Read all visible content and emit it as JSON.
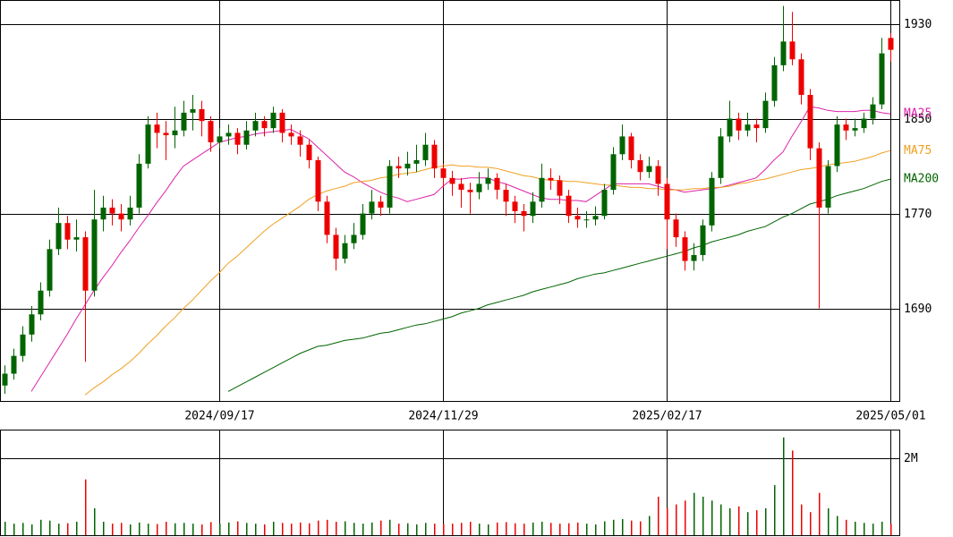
{
  "chart_data": {
    "type": "candlestick",
    "categories": [
      null,
      null,
      null,
      null,
      null,
      null,
      null,
      null,
      null,
      null,
      null,
      null,
      null,
      null,
      null,
      null,
      null,
      null,
      null,
      null,
      null,
      null,
      null,
      null,
      "2024/09/17",
      null,
      null,
      null,
      null,
      null,
      null,
      null,
      null,
      null,
      null,
      null,
      null,
      null,
      null,
      null,
      null,
      null,
      null,
      null,
      null,
      null,
      null,
      null,
      null,
      "2024/11/29",
      null,
      null,
      null,
      null,
      null,
      null,
      null,
      null,
      null,
      null,
      null,
      null,
      null,
      null,
      null,
      null,
      null,
      null,
      null,
      null,
      null,
      null,
      null,
      null,
      "2025/02/17",
      null,
      null,
      null,
      null,
      null,
      null,
      null,
      null,
      null,
      null,
      null,
      null,
      null,
      null,
      null,
      null,
      null,
      null,
      null,
      null,
      null,
      null,
      null,
      null,
      "2025/05/01"
    ],
    "open": [
      1625,
      1635,
      1650,
      1668,
      1685,
      1705,
      1740,
      1762,
      1748,
      1750,
      1705,
      1765,
      1775,
      1770,
      1765,
      1775,
      1812,
      1845,
      1838,
      1836,
      1840,
      1855,
      1858,
      1848,
      1830,
      1835,
      1838,
      1828,
      1840,
      1848,
      1842,
      1855,
      1838,
      1835,
      1828,
      1815,
      1780,
      1752,
      1732,
      1745,
      1752,
      1770,
      1780,
      1775,
      1810,
      1808,
      1812,
      1815,
      1828,
      1808,
      1800,
      1795,
      1790,
      1788,
      1795,
      1800,
      1790,
      1780,
      1772,
      1768,
      1780,
      1800,
      1798,
      1785,
      1768,
      1765,
      1765,
      1768,
      1790,
      1820,
      1835,
      1815,
      1805,
      1810,
      1795,
      1765,
      1750,
      1730,
      1735,
      1760,
      1800,
      1835,
      1850,
      1840,
      1845,
      1842,
      1865,
      1895,
      1915,
      1900,
      1870,
      1825,
      1775,
      1810,
      1845,
      1840,
      1842,
      1850,
      1862,
      1918
    ],
    "high": [
      1642,
      1656,
      1675,
      1692,
      1712,
      1748,
      1775,
      1768,
      1765,
      1755,
      1790,
      1785,
      1782,
      1778,
      1785,
      1820,
      1852,
      1855,
      1848,
      1860,
      1865,
      1870,
      1865,
      1852,
      1842,
      1845,
      1842,
      1848,
      1855,
      1852,
      1860,
      1858,
      1845,
      1840,
      1832,
      1818,
      1785,
      1758,
      1752,
      1762,
      1778,
      1790,
      1785,
      1815,
      1818,
      1822,
      1828,
      1838,
      1832,
      1812,
      1806,
      1800,
      1796,
      1805,
      1808,
      1804,
      1795,
      1785,
      1778,
      1788,
      1812,
      1808,
      1802,
      1790,
      1775,
      1772,
      1776,
      1795,
      1826,
      1845,
      1838,
      1820,
      1818,
      1815,
      1800,
      1770,
      1755,
      1745,
      1765,
      1805,
      1842,
      1865,
      1855,
      1855,
      1850,
      1872,
      1902,
      1945,
      1940,
      1905,
      1875,
      1830,
      1815,
      1852,
      1850,
      1850,
      1855,
      1868,
      1918,
      1922
    ],
    "low": [
      1618,
      1630,
      1645,
      1662,
      1680,
      1700,
      1735,
      1740,
      1738,
      1645,
      1700,
      1755,
      1760,
      1755,
      1760,
      1770,
      1808,
      1825,
      1815,
      1825,
      1835,
      1840,
      1835,
      1822,
      1825,
      1828,
      1820,
      1824,
      1835,
      1835,
      1838,
      1830,
      1828,
      1818,
      1808,
      1772,
      1745,
      1722,
      1728,
      1740,
      1748,
      1765,
      1768,
      1770,
      1800,
      1802,
      1805,
      1810,
      1800,
      1792,
      1785,
      1775,
      1770,
      1782,
      1790,
      1782,
      1768,
      1762,
      1755,
      1762,
      1775,
      1790,
      1778,
      1762,
      1758,
      1758,
      1760,
      1765,
      1786,
      1815,
      1808,
      1798,
      1800,
      1785,
      1740,
      1742,
      1722,
      1722,
      1730,
      1755,
      1795,
      1830,
      1832,
      1835,
      1830,
      1838,
      1860,
      1890,
      1895,
      1862,
      1815,
      1690,
      1770,
      1805,
      1832,
      1835,
      1838,
      1845,
      1858,
      1898
    ],
    "close": [
      1635,
      1650,
      1668,
      1685,
      1705,
      1740,
      1762,
      1748,
      1750,
      1705,
      1765,
      1775,
      1770,
      1765,
      1775,
      1812,
      1845,
      1838,
      1836,
      1840,
      1855,
      1858,
      1848,
      1830,
      1835,
      1838,
      1828,
      1840,
      1848,
      1842,
      1855,
      1838,
      1835,
      1828,
      1815,
      1780,
      1752,
      1732,
      1745,
      1752,
      1770,
      1780,
      1775,
      1810,
      1808,
      1812,
      1815,
      1828,
      1808,
      1800,
      1795,
      1790,
      1788,
      1795,
      1800,
      1790,
      1780,
      1772,
      1768,
      1780,
      1800,
      1798,
      1785,
      1768,
      1765,
      1765,
      1768,
      1790,
      1820,
      1835,
      1815,
      1805,
      1810,
      1795,
      1765,
      1750,
      1730,
      1735,
      1760,
      1800,
      1835,
      1850,
      1840,
      1845,
      1842,
      1865,
      1895,
      1915,
      1900,
      1870,
      1825,
      1775,
      1810,
      1845,
      1840,
      1842,
      1850,
      1862,
      1905,
      1908
    ],
    "up_color": "#006400",
    "down_color": "#ee0000",
    "ylim": [
      1612,
      1950
    ],
    "yticks": [
      1690,
      1770,
      1850,
      1930
    ],
    "grid": true,
    "moving_averages": [
      {
        "name": "MA25",
        "color": "#dd22aa",
        "values": [
          null,
          null,
          null,
          1620,
          1632,
          1644,
          1656,
          1668,
          1681,
          1693,
          1705,
          1716,
          1726,
          1737,
          1747,
          1758,
          1768,
          1779,
          1789,
          1800,
          1810,
          1815,
          1820,
          1825,
          1830,
          1832,
          1834,
          1835,
          1837,
          1838,
          1839,
          1840,
          1841,
          1837,
          1833,
          1826,
          1819,
          1812,
          1805,
          1801,
          1796,
          1792,
          1788,
          1785,
          1783,
          1780,
          1782,
          1784,
          1786,
          1793,
          1799,
          1799,
          1800,
          1800,
          1800,
          1797,
          1795,
          1792,
          1789,
          1786,
          1783,
          1782,
          1782,
          1781,
          1781,
          1780,
          1785,
          1790,
          1795,
          1795,
          1795,
          1795,
          1795,
          1793,
          1791,
          1790,
          1788,
          1789,
          1790,
          1791,
          1792,
          1794,
          1796,
          1798,
          1800,
          1807,
          1815,
          1822,
          1835,
          1847,
          1860,
          1859,
          1857,
          1856,
          1856,
          1856,
          1857,
          1857,
          1855,
          1854
        ]
      },
      {
        "name": "MA75",
        "color": "#f0a020",
        "values": [
          null,
          null,
          null,
          null,
          null,
          null,
          null,
          null,
          null,
          1617,
          1623,
          1628,
          1634,
          1639,
          1645,
          1652,
          1660,
          1667,
          1675,
          1682,
          1690,
          1697,
          1705,
          1713,
          1720,
          1728,
          1734,
          1741,
          1748,
          1755,
          1761,
          1766,
          1771,
          1776,
          1782,
          1786,
          1789,
          1791,
          1793,
          1796,
          1797,
          1798,
          1800,
          1801,
          1803,
          1804,
          1805,
          1807,
          1809,
          1810,
          1811,
          1810,
          1810,
          1809,
          1809,
          1808,
          1806,
          1804,
          1802,
          1801,
          1799,
          1798,
          1798,
          1797,
          1797,
          1796,
          1795,
          1794,
          1794,
          1793,
          1792,
          1792,
          1791,
          1791,
          1790,
          1790,
          1790,
          1791,
          1791,
          1792,
          1792,
          1793,
          1795,
          1796,
          1798,
          1799,
          1801,
          1803,
          1805,
          1807,
          1808,
          1809,
          1811,
          1812,
          1813,
          1814,
          1816,
          1818,
          1821,
          1823
        ]
      },
      {
        "name": "MA200",
        "color": "#006400",
        "values": [
          null,
          null,
          null,
          null,
          null,
          null,
          null,
          null,
          null,
          null,
          null,
          null,
          null,
          null,
          null,
          null,
          null,
          null,
          null,
          null,
          null,
          null,
          null,
          null,
          null,
          1620,
          1624,
          1628,
          1632,
          1636,
          1640,
          1644,
          1648,
          1652,
          1655,
          1658,
          1659,
          1661,
          1663,
          1664,
          1665,
          1667,
          1669,
          1670,
          1672,
          1674,
          1676,
          1677,
          1679,
          1681,
          1683,
          1686,
          1688,
          1690,
          1693,
          1695,
          1697,
          1699,
          1701,
          1704,
          1706,
          1708,
          1710,
          1712,
          1715,
          1717,
          1719,
          1720,
          1722,
          1724,
          1726,
          1728,
          1730,
          1732,
          1734,
          1736,
          1738,
          1741,
          1743,
          1746,
          1748,
          1750,
          1752,
          1755,
          1757,
          1759,
          1763,
          1767,
          1770,
          1774,
          1778,
          1780,
          1782,
          1785,
          1787,
          1789,
          1791,
          1794,
          1797,
          1799
        ]
      }
    ],
    "volume": {
      "ylim": [
        0,
        2744000
      ],
      "yticks": [
        {
          "value": 2000000,
          "label": "2M"
        }
      ],
      "values": [
        350000,
        300000,
        320000,
        280000,
        400000,
        380000,
        300000,
        310000,
        350000,
        1450000,
        700000,
        350000,
        300000,
        320000,
        280000,
        330000,
        300000,
        290000,
        350000,
        310000,
        320000,
        300000,
        280000,
        340000,
        300000,
        330000,
        360000,
        320000,
        300000,
        280000,
        350000,
        320000,
        300000,
        330000,
        310000,
        380000,
        400000,
        350000,
        360000,
        320000,
        300000,
        330000,
        380000,
        400000,
        300000,
        310000,
        280000,
        320000,
        300000,
        290000,
        300000,
        320000,
        350000,
        300000,
        280000,
        330000,
        340000,
        310000,
        300000,
        330000,
        350000,
        320000,
        300000,
        310000,
        330000,
        300000,
        280000,
        360000,
        400000,
        420000,
        380000,
        360000,
        500000,
        1000000,
        700000,
        800000,
        900000,
        1100000,
        1000000,
        900000,
        800000,
        700000,
        750000,
        600000,
        650000,
        700000,
        1300000,
        2540000,
        2200000,
        800000,
        600000,
        1100000,
        700000,
        500000,
        400000,
        350000,
        320000,
        300000,
        350000,
        300000
      ]
    }
  }
}
